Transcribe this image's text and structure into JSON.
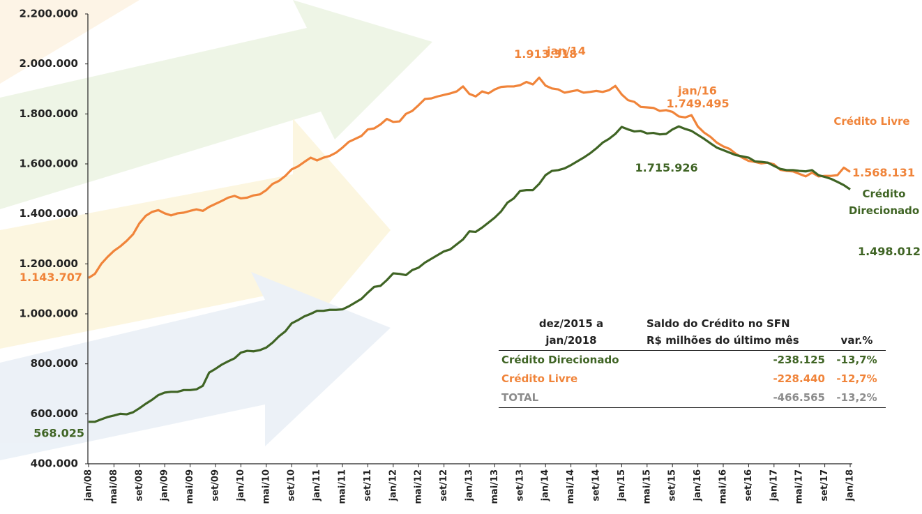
{
  "chart_data": {
    "type": "line",
    "categories": [
      "jan/08",
      null,
      null,
      null,
      "mai/08",
      null,
      null,
      null,
      "set/08",
      null,
      null,
      null,
      "jan/09",
      null,
      null,
      null,
      "mai/09",
      null,
      null,
      null,
      "set/09",
      null,
      null,
      null,
      "jan/10",
      null,
      null,
      null,
      "mai/10",
      null,
      null,
      null,
      "set/10",
      null,
      null,
      null,
      "jan/11",
      null,
      null,
      null,
      "mai/11",
      null,
      null,
      null,
      "set/11",
      null,
      null,
      null,
      "jan/12",
      null,
      null,
      null,
      "mai/12",
      null,
      null,
      null,
      "set/12",
      null,
      null,
      null,
      "jan/13",
      null,
      null,
      null,
      "mai/13",
      null,
      null,
      null,
      "set/13",
      null,
      null,
      null,
      "jan/14",
      null,
      null,
      null,
      "mai/14",
      null,
      null,
      null,
      "set/14",
      null,
      null,
      null,
      "jan/15",
      null,
      null,
      null,
      "mai/15",
      null,
      null,
      null,
      "set/15",
      null,
      null,
      null,
      "jan/16",
      null,
      null,
      null,
      "mai/16",
      null,
      null,
      null,
      "set/16",
      null,
      null,
      null,
      "jan/17",
      null,
      null,
      null,
      "mai/17",
      null,
      null,
      null,
      "set/17",
      null,
      null,
      null,
      "jan/18"
    ],
    "series": [
      {
        "name": "Crédito Livre",
        "color": "#f0843a",
        "values": [
          1143707,
          1160000,
          1200000,
          1228000,
          1252000,
          1270000,
          1292000,
          1318000,
          1362000,
          1392000,
          1408000,
          1415000,
          1402000,
          1394000,
          1402000,
          1405000,
          1412000,
          1418000,
          1412000,
          1428000,
          1440000,
          1452000,
          1465000,
          1472000,
          1462000,
          1465000,
          1474000,
          1478000,
          1495000,
          1520000,
          1532000,
          1552000,
          1578000,
          1590000,
          1608000,
          1625000,
          1614000,
          1625000,
          1632000,
          1645000,
          1665000,
          1688000,
          1700000,
          1712000,
          1738000,
          1742000,
          1758000,
          1780000,
          1768000,
          1770000,
          1800000,
          1812000,
          1835000,
          1860000,
          1862000,
          1870000,
          1876000,
          1882000,
          1890000,
          1910000,
          1880000,
          1870000,
          1890000,
          1882000,
          1898000,
          1908000,
          1910000,
          1910000,
          1915000,
          1928000,
          1918000,
          1945000,
          1913318,
          1902000,
          1898000,
          1885000,
          1890000,
          1895000,
          1885000,
          1888000,
          1892000,
          1888000,
          1895000,
          1912000,
          1878000,
          1855000,
          1848000,
          1828000,
          1826000,
          1824000,
          1812000,
          1815000,
          1808000,
          1790000,
          1786000,
          1795000,
          1749495,
          1725000,
          1708000,
          1685000,
          1670000,
          1660000,
          1640000,
          1625000,
          1612000,
          1608000,
          1602000,
          1605000,
          1598000,
          1576000,
          1572000,
          1570000,
          1560000,
          1550000,
          1565000,
          1550000,
          1552000,
          1552000,
          1555000,
          1585000,
          1568131
        ],
        "value_labels": [
          "1.143.707",
          null,
          null,
          null,
          null,
          null,
          null,
          null,
          null,
          null,
          null,
          null,
          null,
          null,
          null,
          null,
          null,
          null,
          null,
          null,
          null,
          null,
          null,
          null,
          null,
          null,
          null,
          null,
          null,
          null,
          null,
          null,
          null,
          null,
          null,
          null,
          null,
          null,
          null,
          null,
          null,
          null,
          null,
          null,
          null,
          null,
          null,
          null,
          null,
          null,
          null,
          null,
          null,
          null,
          null,
          null,
          null,
          null,
          null,
          null,
          null,
          null,
          null,
          null,
          null,
          null,
          null,
          null,
          null,
          null,
          null,
          null,
          "1.913.318",
          null,
          null,
          null,
          null,
          null,
          null,
          null,
          null,
          null,
          null,
          null,
          null,
          null,
          null,
          null,
          null,
          null,
          null,
          null,
          null,
          null,
          null,
          null,
          "1.749.495",
          null,
          null,
          null,
          null,
          null,
          null,
          null,
          null,
          null,
          null,
          null,
          null,
          null,
          null,
          null,
          null,
          null,
          null,
          null,
          null,
          null,
          null,
          null,
          "1.568.131"
        ]
      },
      {
        "name": "Crédito Direcionado",
        "color": "#3f6424",
        "values": [
          568025,
          568000,
          578000,
          587000,
          593000,
          600000,
          598000,
          606000,
          622000,
          640000,
          656000,
          675000,
          685000,
          688000,
          688000,
          695000,
          695000,
          698000,
          712000,
          765000,
          780000,
          797000,
          810000,
          822000,
          845000,
          852000,
          850000,
          855000,
          865000,
          885000,
          910000,
          930000,
          962000,
          975000,
          990000,
          1000000,
          1012000,
          1012000,
          1016000,
          1016000,
          1018000,
          1030000,
          1045000,
          1060000,
          1085000,
          1108000,
          1112000,
          1135000,
          1162000,
          1160000,
          1155000,
          1175000,
          1185000,
          1205000,
          1220000,
          1235000,
          1250000,
          1258000,
          1278000,
          1298000,
          1330000,
          1328000,
          1345000,
          1365000,
          1385000,
          1410000,
          1445000,
          1462000,
          1492000,
          1495000,
          1495000,
          1520000,
          1555000,
          1572000,
          1575000,
          1582000,
          1595000,
          1610000,
          1625000,
          1642000,
          1662000,
          1685000,
          1700000,
          1720000,
          1748000,
          1738000,
          1730000,
          1732000,
          1722000,
          1724000,
          1718000,
          1720000,
          1738000,
          1750000,
          1740000,
          1732000,
          1715926,
          1700000,
          1682000,
          1665000,
          1655000,
          1645000,
          1635000,
          1630000,
          1625000,
          1610000,
          1608000,
          1605000,
          1592000,
          1580000,
          1575000,
          1575000,
          1572000,
          1570000,
          1575000,
          1555000,
          1548000,
          1540000,
          1528000,
          1515000,
          1498012
        ],
        "value_labels": [
          "568.025",
          null,
          null,
          null,
          null,
          null,
          null,
          null,
          null,
          null,
          null,
          null,
          null,
          null,
          null,
          null,
          null,
          null,
          null,
          null,
          null,
          null,
          null,
          null,
          null,
          null,
          null,
          null,
          null,
          null,
          null,
          null,
          null,
          null,
          null,
          null,
          null,
          null,
          null,
          null,
          null,
          null,
          null,
          null,
          null,
          null,
          null,
          null,
          null,
          null,
          null,
          null,
          null,
          null,
          null,
          null,
          null,
          null,
          null,
          null,
          null,
          null,
          null,
          null,
          null,
          null,
          null,
          null,
          null,
          null,
          null,
          null,
          null,
          null,
          null,
          null,
          null,
          null,
          null,
          null,
          null,
          null,
          null,
          null,
          null,
          null,
          null,
          null,
          null,
          null,
          null,
          null,
          null,
          null,
          null,
          null,
          "1.715.926",
          null,
          null,
          null,
          null,
          null,
          null,
          null,
          null,
          null,
          null,
          null,
          null,
          null,
          null,
          null,
          null,
          null,
          null,
          null,
          null,
          null,
          null,
          null,
          "1.498.012"
        ]
      }
    ],
    "annotations": [
      "jan/14",
      "jan/16"
    ],
    "ylim": [
      400000,
      2200000
    ],
    "yticks": [
      {
        "value": 400000,
        "label": "400.000"
      },
      {
        "value": 600000,
        "label": "600.000"
      },
      {
        "value": 800000,
        "label": "800.000"
      },
      {
        "value": 1000000,
        "label": "1.000.000"
      },
      {
        "value": 1200000,
        "label": "1.200.000"
      },
      {
        "value": 1400000,
        "label": "1.400.000"
      },
      {
        "value": 1600000,
        "label": "1.600.000"
      },
      {
        "value": 1800000,
        "label": "1.800.000"
      },
      {
        "value": 2000000,
        "label": "2.000.000"
      },
      {
        "value": 2200000,
        "label": "2.200.000"
      }
    ],
    "grid": false
  },
  "table": {
    "header": [
      [
        "dez/2015 a",
        "jan/2018"
      ],
      [
        "Saldo do Crédito no SFN",
        "R$ milhões do último mês"
      ],
      [
        "var.%"
      ]
    ],
    "rows": [
      {
        "cells": [
          "Crédito Direcionado",
          "-238.125",
          "-13,7%"
        ],
        "color": "#3f6424"
      },
      {
        "cells": [
          "Crédito Livre",
          "-228.440",
          "-12,7%"
        ],
        "color": "#f0843a"
      },
      {
        "cells": [
          "TOTAL",
          "-466.565",
          "-13,2%"
        ],
        "color": "#8c8c8c"
      }
    ]
  }
}
